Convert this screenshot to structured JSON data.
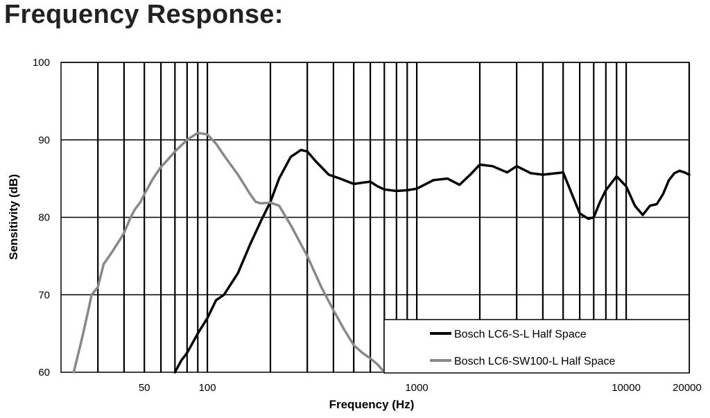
{
  "page": {
    "title": "Frequency Response:"
  },
  "chart_data": {
    "type": "line",
    "xlabel": "Frequency (Hz)",
    "ylabel": "Sensitivity (dB)",
    "xscale": "log",
    "xlim": [
      20,
      20000
    ],
    "ylim": [
      60,
      100
    ],
    "grid": true,
    "legend_placement": "bottom-right",
    "x_tick_labels": [
      {
        "value": 50,
        "label": "50"
      },
      {
        "value": 100,
        "label": "100"
      },
      {
        "value": 1000,
        "label": "1000"
      },
      {
        "value": 10000,
        "label": "10000"
      },
      {
        "value": 20000,
        "label": "20000"
      }
    ],
    "y_tick_labels": [
      {
        "value": 60,
        "label": "60"
      },
      {
        "value": 70,
        "label": "70"
      },
      {
        "value": 80,
        "label": "80"
      },
      {
        "value": 90,
        "label": "90"
      },
      {
        "value": 100,
        "label": "100"
      }
    ],
    "vertical_gridlines": [
      30,
      40,
      50,
      60,
      70,
      80,
      90,
      100,
      200,
      300,
      400,
      500,
      600,
      700,
      800,
      900,
      1000,
      2000,
      3000,
      4000,
      5000,
      6000,
      7000,
      8000,
      9000,
      10000,
      20000
    ],
    "horizontal_gridlines": [
      70,
      80,
      90,
      100
    ],
    "series": [
      {
        "name": "Bosch LC6-S-L Half Space",
        "color": "#000000",
        "x": [
          70,
          75,
          80,
          90,
          100,
          110,
          120,
          140,
          160,
          180,
          200,
          220,
          250,
          280,
          300,
          330,
          380,
          430,
          500,
          560,
          600,
          650,
          700,
          800,
          900,
          1000,
          1200,
          1400,
          1600,
          1800,
          2000,
          2300,
          2700,
          3000,
          3500,
          4000,
          5000,
          6000,
          6600,
          7000,
          7500,
          8000,
          9000,
          10000,
          11000,
          12000,
          13000,
          14000,
          15000,
          16000,
          17000,
          18000,
          19000,
          20000
        ],
        "y": [
          60.0,
          61.5,
          62.5,
          65.0,
          67.0,
          69.3,
          70.0,
          72.8,
          76.5,
          79.5,
          82.0,
          85.0,
          87.8,
          88.7,
          88.5,
          87.2,
          85.5,
          85.0,
          84.3,
          84.5,
          84.6,
          84.0,
          83.6,
          83.4,
          83.5,
          83.7,
          84.8,
          85.0,
          84.2,
          85.5,
          86.8,
          86.6,
          85.8,
          86.6,
          85.7,
          85.5,
          85.8,
          80.5,
          79.8,
          80.0,
          82.0,
          83.5,
          85.3,
          84.0,
          81.5,
          80.3,
          81.5,
          81.7,
          83.0,
          84.8,
          85.7,
          86.0,
          85.8,
          85.5
        ]
      },
      {
        "name": "Bosch LC6-SW100-L Half Space",
        "color": "#888888",
        "x": [
          23,
          25,
          27,
          28,
          30,
          32,
          33,
          35,
          38,
          40,
          43,
          45,
          48,
          50,
          55,
          60,
          65,
          70,
          80,
          90,
          100,
          110,
          120,
          140,
          160,
          170,
          180,
          200,
          220,
          250,
          300,
          350,
          400,
          450,
          500,
          550,
          600,
          650,
          700
        ],
        "y": [
          60.0,
          64.0,
          68.0,
          70.0,
          71.0,
          74.0,
          74.5,
          75.5,
          77.0,
          78.0,
          80.0,
          81.0,
          82.0,
          83.0,
          85.0,
          86.5,
          87.5,
          88.5,
          90.0,
          90.9,
          90.7,
          89.5,
          88.0,
          85.5,
          83.0,
          82.0,
          81.8,
          81.9,
          81.5,
          79.0,
          75.0,
          71.0,
          68.0,
          65.5,
          63.5,
          62.5,
          61.8,
          61.0,
          60.0
        ]
      }
    ]
  }
}
